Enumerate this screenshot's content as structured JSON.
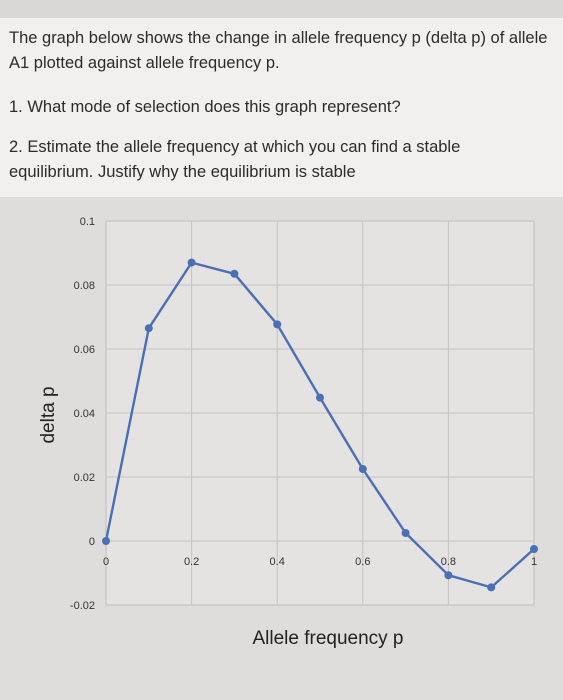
{
  "question": {
    "intro": "The graph below shows the change in allele frequency p (delta p) of allele A1 plotted against allele frequency p.",
    "q1": "1. What mode of selection does this graph represent?",
    "q2": "2. Estimate the allele frequency at which you can find a stable equilibrium. Justify why the equilibrium is stable"
  },
  "chart_data": {
    "type": "line",
    "title": "",
    "xlabel": "Allele frequency p",
    "ylabel": "delta p",
    "xlim": [
      0,
      1
    ],
    "ylim": [
      -0.02,
      0.1
    ],
    "x_ticks": [
      "0",
      "0.2",
      "0.4",
      "0.6",
      "0.8",
      "1"
    ],
    "y_ticks": [
      "0.1",
      "0.08",
      "0.06",
      "0.04",
      "0.02",
      "0",
      "-0.02"
    ],
    "grid": true,
    "series": [
      {
        "color": "#4a6fb5",
        "x": [
          0,
          0.1,
          0.2,
          0.3,
          0.4,
          0.5,
          0.6,
          0.7,
          0.8,
          0.9,
          1.0
        ],
        "y": [
          0,
          0.0665,
          0.087,
          0.0835,
          0.0677,
          0.0448,
          0.0225,
          0.0025,
          -0.0107,
          -0.0145,
          -0.0025
        ]
      }
    ]
  }
}
